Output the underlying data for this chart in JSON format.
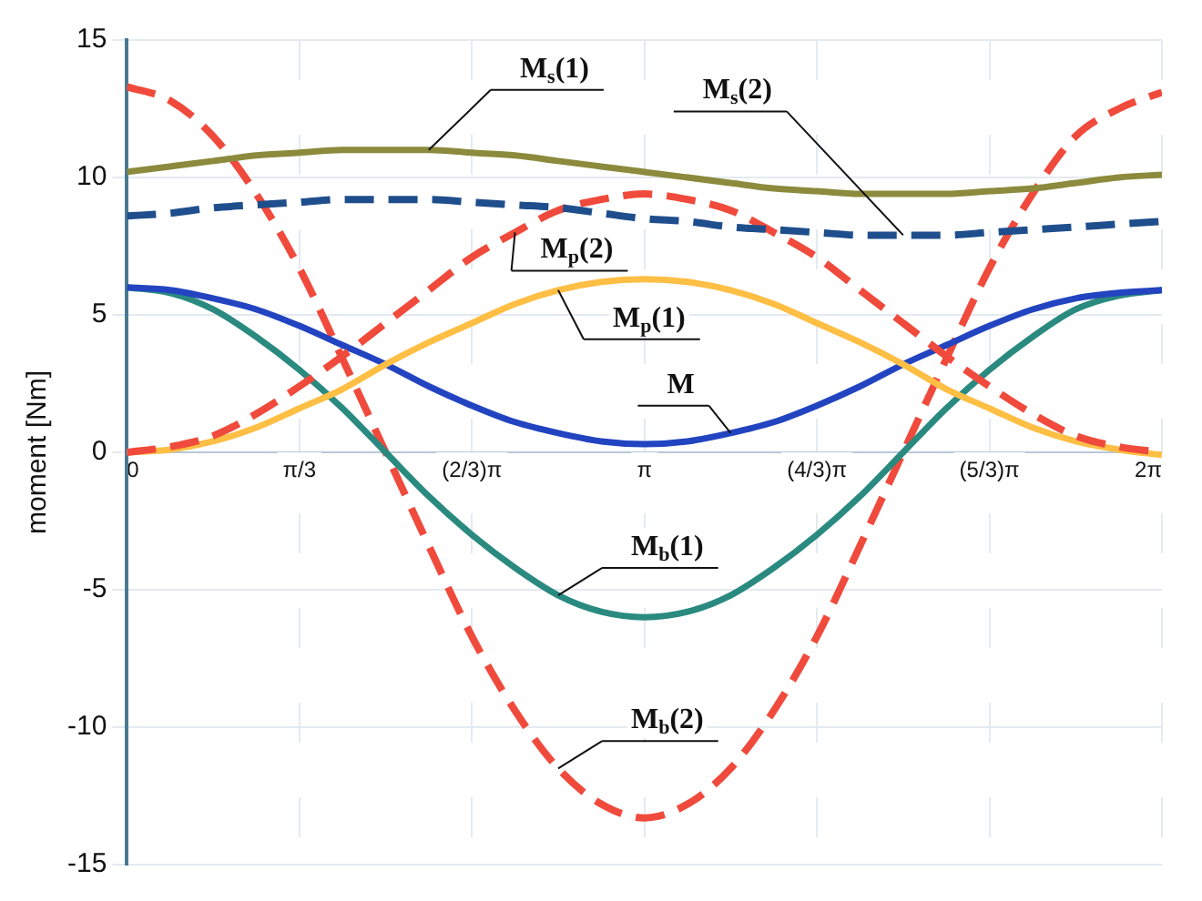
{
  "chart_data": {
    "type": "line",
    "ylabel": "moment [Nm]",
    "x": [
      0,
      0.2618,
      0.5236,
      0.7854,
      1.0472,
      1.309,
      1.5708,
      1.8326,
      2.0944,
      2.3562,
      2.618,
      2.8798,
      3.1416,
      3.4034,
      3.6652,
      3.927,
      4.1888,
      4.4506,
      4.7124,
      4.9742,
      5.236,
      5.4978,
      5.7596,
      6.0214,
      6.2832
    ],
    "xlim": [
      0,
      6.2832
    ],
    "xticks": [
      0,
      {
        "value": 1.0472,
        "label": "π/3"
      },
      {
        "value": 2.0944,
        "label": "(2/3)π"
      },
      {
        "value": 3.1416,
        "label": "π"
      },
      {
        "value": 4.1888,
        "label": "(4/3)π"
      },
      {
        "value": 5.236,
        "label": "(5/3)π"
      },
      {
        "value": 6.2832,
        "label": "2π"
      }
    ],
    "ylim": [
      -15,
      15
    ],
    "yticks": [
      -15,
      -10,
      -5,
      0,
      5,
      10,
      15
    ],
    "grid": true,
    "marker": "none",
    "series": [
      {
        "name": "M$_{s}$(1)",
        "color": "#8c8a3c",
        "line_style": "solid",
        "values": [
          10.2,
          10.4,
          10.6,
          10.8,
          10.9,
          11.0,
          11.0,
          11.0,
          10.9,
          10.8,
          10.6,
          10.4,
          10.2,
          10.0,
          9.8,
          9.6,
          9.5,
          9.4,
          9.4,
          9.4,
          9.5,
          9.6,
          9.8,
          10.0,
          10.1
        ]
      },
      {
        "name": "M$_{s}$(2)",
        "color": "#1f4e8c",
        "line_style": "dashed",
        "values": [
          8.6,
          8.7,
          8.9,
          9.0,
          9.1,
          9.2,
          9.2,
          9.2,
          9.1,
          9.0,
          8.9,
          8.7,
          8.5,
          8.4,
          8.2,
          8.1,
          8.0,
          7.9,
          7.9,
          7.9,
          8.0,
          8.1,
          8.2,
          8.3,
          8.4
        ]
      },
      {
        "name": "M$_{p}$(2)",
        "color": "#f04a3c",
        "line_style": "dashed",
        "values": [
          0,
          0.2,
          0.6,
          1.4,
          2.4,
          3.5,
          4.7,
          5.9,
          7.1,
          8.0,
          8.8,
          9.2,
          9.4,
          9.2,
          8.8,
          8.0,
          7.1,
          5.9,
          4.7,
          3.5,
          2.4,
          1.4,
          0.6,
          0.2,
          0
        ]
      },
      {
        "name": "M$_{p}$(1)",
        "color": "#ffbe44",
        "line_style": "solid",
        "values": [
          0,
          0.1,
          0.4,
          0.9,
          1.6,
          2.3,
          3.2,
          4.0,
          4.7,
          5.4,
          5.9,
          6.2,
          6.3,
          6.2,
          5.9,
          5.4,
          4.7,
          4.0,
          3.2,
          2.3,
          1.6,
          0.9,
          0.4,
          0.1,
          -0.1
        ]
      },
      {
        "name": "M",
        "color": "#2244c0",
        "line_style": "solid",
        "values": [
          6.0,
          5.9,
          5.6,
          5.2,
          4.6,
          3.9,
          3.2,
          2.4,
          1.7,
          1.1,
          0.7,
          0.4,
          0.3,
          0.4,
          0.7,
          1.1,
          1.7,
          2.4,
          3.2,
          3.9,
          4.6,
          5.2,
          5.6,
          5.8,
          5.9
        ]
      },
      {
        "name": "M$_{b}$(1)",
        "color": "#2a8a80",
        "line_style": "solid",
        "values": [
          6.0,
          5.8,
          5.2,
          4.2,
          3.0,
          1.6,
          0,
          -1.6,
          -3.0,
          -4.2,
          -5.2,
          -5.8,
          -6.0,
          -5.8,
          -5.2,
          -4.2,
          -3.0,
          -1.6,
          0,
          1.6,
          3.0,
          4.2,
          5.2,
          5.7,
          5.9
        ]
      },
      {
        "name": "M$_{b}$(2)",
        "color": "#f04a3c",
        "line_style": "dashed",
        "values": [
          13.3,
          12.8,
          11.5,
          9.4,
          6.7,
          3.4,
          0,
          -3.4,
          -6.7,
          -9.4,
          -11.5,
          -12.8,
          -13.3,
          -12.8,
          -11.5,
          -9.4,
          -6.7,
          -3.4,
          0,
          3.4,
          6.7,
          9.4,
          11.5,
          12.5,
          13.1
        ]
      }
    ]
  }
}
